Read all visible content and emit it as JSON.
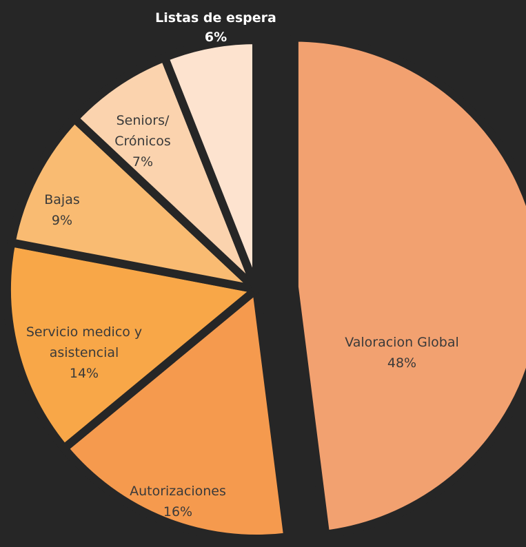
{
  "chart_data": {
    "type": "pie",
    "categories": [
      "Valoracion Global",
      "Autorizaciones",
      "Servicio medico y asistencial",
      "Bajas",
      "Seniors/ Crónicos",
      "Listas de espera"
    ],
    "values": [
      48,
      16,
      14,
      9,
      7,
      6
    ],
    "value_labels": [
      "48%",
      "16%",
      "14%",
      "9%",
      "7%",
      "6%"
    ],
    "colors": [
      "#f2a170",
      "#f59a4e",
      "#f8a748",
      "#f9bb72",
      "#fbd3ae",
      "#fde3cf"
    ]
  }
}
